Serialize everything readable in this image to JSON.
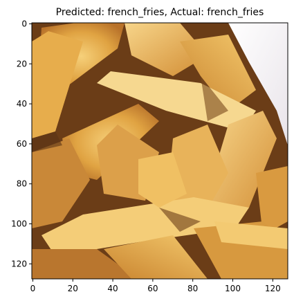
{
  "figure": {
    "title": "Predicted: french_fries, Actual: french_fries",
    "image_subject": "french fries close-up",
    "x_axis": {
      "ticks": [
        0,
        20,
        40,
        60,
        80,
        100,
        120
      ],
      "range": [
        -0.5,
        127.5
      ]
    },
    "y_axis": {
      "ticks": [
        0,
        20,
        40,
        60,
        80,
        100,
        120
      ],
      "range": [
        -0.5,
        127.5
      ],
      "inverted": true
    },
    "colors": {
      "fries_light": "#f2c56a",
      "fries_mid": "#e0a342",
      "fries_dark": "#b8722a",
      "background_dark": "#5a3415",
      "paper": "#f4f1f4"
    }
  }
}
